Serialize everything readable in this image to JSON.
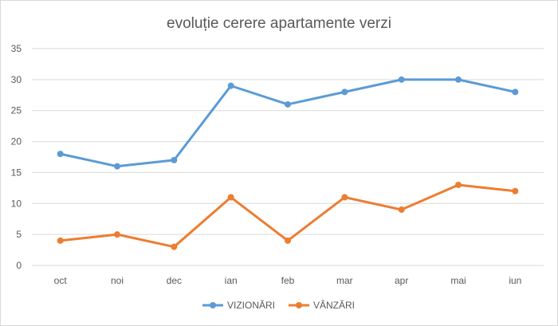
{
  "chart_data": {
    "type": "line",
    "title": "evoluție cerere apartamente verzi",
    "categories": [
      "oct",
      "noi",
      "dec",
      "ian",
      "feb",
      "mar",
      "apr",
      "mai",
      "iun"
    ],
    "ylim": [
      0,
      35
    ],
    "yticks": [
      0,
      5,
      10,
      15,
      20,
      25,
      30,
      35
    ],
    "grid": true,
    "legend_position": "bottom",
    "series": [
      {
        "name": "VIZIONĂRI",
        "color": "#5B9BD5",
        "values": [
          18,
          16,
          17,
          29,
          26,
          28,
          30,
          30,
          28
        ]
      },
      {
        "name": "VÂNZĂRI",
        "color": "#ED7D31",
        "values": [
          4,
          5,
          3,
          11,
          4,
          11,
          9,
          13,
          12
        ]
      }
    ]
  }
}
